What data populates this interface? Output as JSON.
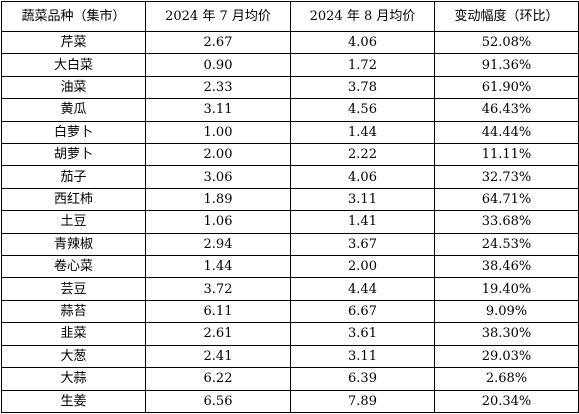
{
  "table": {
    "headers": [
      "蔬菜品种（集市）",
      "2024 年 7 月均价",
      "2024 年 8 月均价",
      "变动幅度（环比）"
    ],
    "rows": [
      [
        "芹菜",
        "2.67",
        "4.06",
        "52.08%"
      ],
      [
        "大白菜",
        "0.90",
        "1.72",
        "91.36%"
      ],
      [
        "油菜",
        "2.33",
        "3.78",
        "61.90%"
      ],
      [
        "黄瓜",
        "3.11",
        "4.56",
        "46.43%"
      ],
      [
        "白萝卜",
        "1.00",
        "1.44",
        "44.44%"
      ],
      [
        "胡萝卜",
        "2.00",
        "2.22",
        "11.11%"
      ],
      [
        "茄子",
        "3.06",
        "4.06",
        "32.73%"
      ],
      [
        "西红柿",
        "1.89",
        "3.11",
        "64.71%"
      ],
      [
        "土豆",
        "1.06",
        "1.41",
        "33.68%"
      ],
      [
        "青辣椒",
        "2.94",
        "3.67",
        "24.53%"
      ],
      [
        "卷心菜",
        "1.44",
        "2.00",
        "38.46%"
      ],
      [
        "芸豆",
        "3.72",
        "4.44",
        "19.40%"
      ],
      [
        "蒜苔",
        "6.11",
        "6.67",
        "9.09%"
      ],
      [
        "韭菜",
        "2.61",
        "3.61",
        "38.30%"
      ],
      [
        "大葱",
        "2.41",
        "3.11",
        "29.03%"
      ],
      [
        "大蒜",
        "6.22",
        "6.39",
        "2.68%"
      ],
      [
        "生姜",
        "6.56",
        "7.89",
        "20.34%"
      ]
    ]
  }
}
